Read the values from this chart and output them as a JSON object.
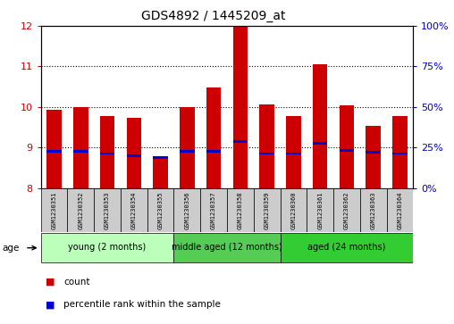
{
  "title": "GDS4892 / 1445209_at",
  "samples": [
    "GSM1230351",
    "GSM1230352",
    "GSM1230353",
    "GSM1230354",
    "GSM1230355",
    "GSM1230356",
    "GSM1230357",
    "GSM1230358",
    "GSM1230359",
    "GSM1230360",
    "GSM1230361",
    "GSM1230362",
    "GSM1230363",
    "GSM1230364"
  ],
  "count_values": [
    9.93,
    10.0,
    9.78,
    9.73,
    8.72,
    9.99,
    10.47,
    11.97,
    10.07,
    9.77,
    11.05,
    10.05,
    9.53,
    9.78
  ],
  "percentile_values": [
    8.9,
    8.9,
    8.85,
    8.8,
    8.75,
    8.9,
    8.9,
    9.15,
    8.85,
    8.85,
    9.1,
    8.92,
    8.88,
    8.85
  ],
  "bar_bottom": 8.0,
  "ylim_left": [
    8,
    12
  ],
  "ylim_right": [
    0,
    100
  ],
  "yticks_left": [
    8,
    9,
    10,
    11,
    12
  ],
  "yticks_right": [
    0,
    25,
    50,
    75,
    100
  ],
  "ytick_labels_right": [
    "0%",
    "25%",
    "50%",
    "75%",
    "100%"
  ],
  "group_defs": [
    [
      0,
      4,
      "young (2 months)",
      "#bbffbb"
    ],
    [
      5,
      8,
      "middle aged (12 months)",
      "#55cc55"
    ],
    [
      9,
      13,
      "aged (24 months)",
      "#33cc33"
    ]
  ],
  "age_label": "age",
  "bar_color": "#cc0000",
  "percentile_color": "#0000cc",
  "bar_width": 0.55,
  "grid_color": "black",
  "plot_bg": "white",
  "left_tick_color": "#cc0000",
  "right_tick_color": "#0000cc",
  "xtick_box_color": "#cccccc",
  "legend_square_size": 8,
  "title_fontsize": 10,
  "ytick_fontsize": 8,
  "xtick_fontsize": 5,
  "group_fontsize": 7,
  "legend_fontsize": 7.5,
  "age_fontsize": 7.5
}
